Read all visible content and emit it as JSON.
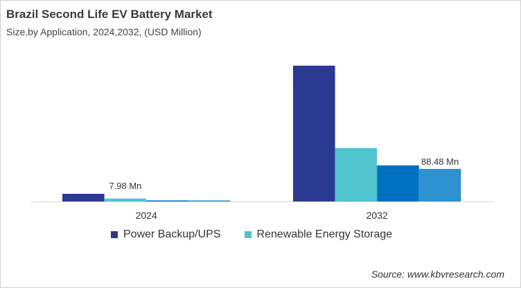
{
  "chart_data": {
    "type": "bar",
    "title": "Brazil Second Life EV Battery Market",
    "subtitle": "Size,by Application, 2024,2032, (USD Million)",
    "categories": [
      "2024",
      "2032"
    ],
    "series": [
      {
        "name": "Power Backup/UPS",
        "color": "#2B3990",
        "values": [
          20.7,
          369
        ]
      },
      {
        "name": "Renewable Energy Storage",
        "color": "#4FC4CF",
        "values": [
          7.98,
          145
        ]
      },
      {
        "color": "#0070C0",
        "values": [
          2,
          98
        ]
      },
      {
        "color": "#2E91D0",
        "values": [
          2,
          88.48
        ]
      }
    ],
    "data_labels": [
      {
        "category": "2024",
        "series_index": 1,
        "text": "7.98 Mn"
      },
      {
        "category": "2032",
        "series_index": 3,
        "text": "88.48 Mn"
      }
    ],
    "ylim": [
      0,
      380
    ],
    "grid": false,
    "legend_placement": "bottom"
  },
  "source": "Source: www.kbvresearch.com"
}
